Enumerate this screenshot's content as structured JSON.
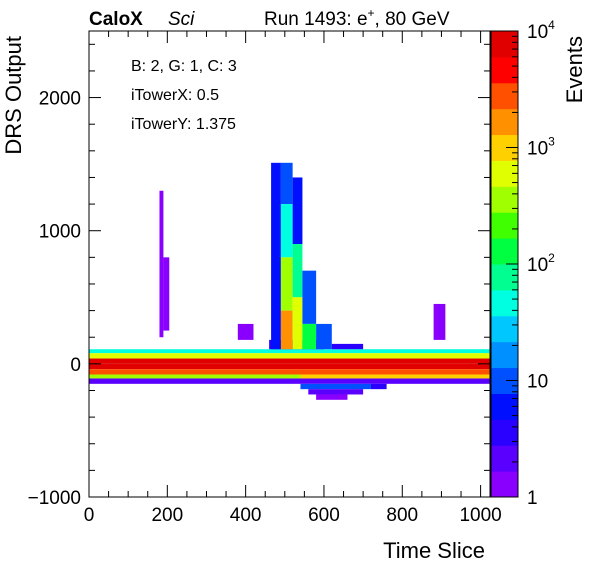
{
  "chart_data": {
    "type": "heatmap",
    "header": {
      "brand": "CaloX",
      "brand_sub": "Sci",
      "run_prefix": "Run 1493: e",
      "run_sup": "+",
      "run_suffix": ", 80 GeV"
    },
    "info_box": [
      "B: 2, G: 1, C: 3",
      "iTowerX: 0.5",
      "iTowerY: 1.375"
    ],
    "xlabel": "Time Slice",
    "ylabel": "DRS Output",
    "zlabel": "Events",
    "xlim": [
      0,
      1024
    ],
    "ylim": [
      -1000,
      2500
    ],
    "x_ticks": [
      0,
      200,
      400,
      600,
      800,
      1000
    ],
    "y_ticks": [
      -1000,
      0,
      1000,
      2000
    ],
    "z_scale": "log",
    "zlim": [
      1,
      10000
    ],
    "z_ticks": [
      {
        "value": 1,
        "base": "1",
        "exp": ""
      },
      {
        "value": 10,
        "base": "10",
        "exp": ""
      },
      {
        "value": 100,
        "base": "10",
        "exp": "2"
      },
      {
        "value": 1000,
        "base": "10",
        "exp": "3"
      },
      {
        "value": 10000,
        "base": "10",
        "exp": "4"
      }
    ],
    "colors": {
      "palette": [
        "#8a00ff",
        "#5a00ff",
        "#2a00ff",
        "#0010ff",
        "#0050ff",
        "#0090ff",
        "#00c8ff",
        "#00ffe0",
        "#00ff90",
        "#00ff40",
        "#40ff00",
        "#a0ff00",
        "#e0ff00",
        "#ffd000",
        "#ff9000",
        "#ff5000",
        "#ff0000",
        "#e00000"
      ]
    },
    "regions": [
      {
        "x": [
          0,
          1024
        ],
        "y": [
          110,
          80
        ],
        "z": 40
      },
      {
        "x": [
          0,
          1024
        ],
        "y": [
          80,
          40
        ],
        "z": 700
      },
      {
        "x": [
          0,
          1024
        ],
        "y": [
          40,
          0
        ],
        "z": 6000
      },
      {
        "x": [
          0,
          1024
        ],
        "y": [
          0,
          -40
        ],
        "z": 9000
      },
      {
        "x": [
          0,
          1024
        ],
        "y": [
          -40,
          -80
        ],
        "z": 2500
      },
      {
        "x": [
          0,
          540
        ],
        "y": [
          -80,
          -110
        ],
        "z": 300
      },
      {
        "x": [
          540,
          1024
        ],
        "y": [
          -80,
          -110
        ],
        "z": 800
      },
      {
        "x": [
          0,
          1024
        ],
        "y": [
          -110,
          -150
        ],
        "z": 2
      },
      {
        "x": [
          540,
          720
        ],
        "y": [
          -150,
          -190
        ],
        "z": 8
      },
      {
        "x": [
          720,
          760
        ],
        "y": [
          -150,
          -190
        ],
        "z": 3
      },
      {
        "x": [
          560,
          700
        ],
        "y": [
          -190,
          -230
        ],
        "z": 2
      },
      {
        "x": [
          580,
          660
        ],
        "y": [
          -230,
          -270
        ],
        "z": 1
      },
      {
        "x": [
          460,
          600
        ],
        "y": [
          180,
          110
        ],
        "z": 3
      },
      {
        "x": [
          465,
          490
        ],
        "y": [
          1510,
          110
        ],
        "z": 6
      },
      {
        "x": [
          490,
          520
        ],
        "y": [
          1510,
          1200
        ],
        "z": 12
      },
      {
        "x": [
          490,
          520
        ],
        "y": [
          1200,
          800
        ],
        "z": 40
      },
      {
        "x": [
          490,
          520
        ],
        "y": [
          800,
          400
        ],
        "z": 300
      },
      {
        "x": [
          490,
          520
        ],
        "y": [
          400,
          110
        ],
        "z": 1500
      },
      {
        "x": [
          520,
          545
        ],
        "y": [
          1400,
          900
        ],
        "z": 6
      },
      {
        "x": [
          520,
          545
        ],
        "y": [
          900,
          500
        ],
        "z": 60
      },
      {
        "x": [
          520,
          545
        ],
        "y": [
          500,
          110
        ],
        "z": 500
      },
      {
        "x": [
          545,
          580
        ],
        "y": [
          700,
          300
        ],
        "z": 8
      },
      {
        "x": [
          545,
          580
        ],
        "y": [
          300,
          110
        ],
        "z": 100
      },
      {
        "x": [
          580,
          620
        ],
        "y": [
          300,
          110
        ],
        "z": 10
      },
      {
        "x": [
          620,
          700
        ],
        "y": [
          150,
          110
        ],
        "z": 3
      },
      {
        "x": [
          180,
          190
        ],
        "y": [
          1300,
          200
        ],
        "z": 1
      },
      {
        "x": [
          190,
          205
        ],
        "y": [
          800,
          250
        ],
        "z": 1
      },
      {
        "x": [
          880,
          910
        ],
        "y": [
          450,
          180
        ],
        "z": 1
      },
      {
        "x": [
          380,
          420
        ],
        "y": [
          300,
          180
        ],
        "z": 1
      }
    ]
  }
}
